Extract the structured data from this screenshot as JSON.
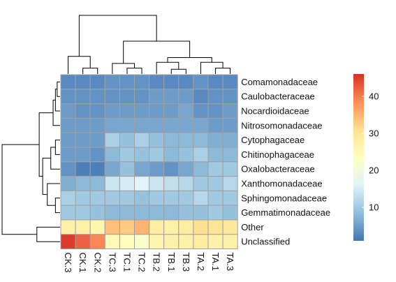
{
  "chart_data": {
    "type": "heatmap",
    "title": "",
    "xlabel": "",
    "ylabel": "",
    "rows": [
      "Comamonadaceae",
      "Caulobacteraceae",
      "Nocardioidaceae",
      "Nitrosomonadaceae",
      "Cytophagaceae",
      "Chitinophagaceae",
      "Oxalobacteraceae",
      "Xanthomonadaceae",
      "Sphingomonadaceae",
      "Gemmatimonadaceae",
      "Other",
      "Unclassified"
    ],
    "columns": [
      "CK.3",
      "CK.1",
      "CK.2",
      "TC.3",
      "TC.1",
      "TC.2",
      "TB.2",
      "TB.1",
      "TB.3",
      "TA.2",
      "TA.1",
      "TA.3"
    ],
    "values": [
      [
        3,
        3,
        3,
        4,
        4,
        4,
        3,
        3,
        3,
        4,
        3,
        3
      ],
      [
        4,
        4,
        4,
        4,
        4,
        4,
        5,
        5,
        5,
        3,
        4,
        4
      ],
      [
        5,
        4,
        4,
        5,
        5,
        5,
        5,
        5,
        6,
        4,
        4,
        5
      ],
      [
        5,
        5,
        5,
        6,
        6,
        6,
        6,
        6,
        6,
        6,
        5,
        5
      ],
      [
        5,
        5,
        5,
        11,
        9,
        11,
        9,
        8,
        8,
        8,
        7,
        7
      ],
      [
        5,
        5,
        4,
        8,
        10,
        9,
        10,
        8,
        9,
        11,
        8,
        8
      ],
      [
        4,
        2,
        2,
        6,
        9,
        6,
        5,
        4,
        6,
        8,
        10,
        10
      ],
      [
        7,
        8,
        8,
        14,
        15,
        16,
        14,
        13,
        12,
        10,
        10,
        12
      ],
      [
        11,
        10,
        10,
        10,
        10,
        9,
        10,
        10,
        10,
        12,
        10,
        10
      ],
      [
        10,
        10,
        9,
        8,
        8,
        8,
        8,
        8,
        9,
        9,
        10,
        9
      ],
      [
        27,
        27,
        26,
        34,
        33,
        35,
        28,
        27,
        28,
        31,
        30,
        29
      ],
      [
        45,
        42,
        39,
        25,
        24,
        22,
        26,
        27,
        27,
        28,
        27,
        27
      ]
    ],
    "legend": {
      "ticks": [
        10,
        20,
        30,
        40
      ],
      "range": [
        1,
        46
      ],
      "colors": [
        "#4575B4",
        "#91BFDB",
        "#E0F3F8",
        "#FFFFBF",
        "#FEE090",
        "#FC8D59",
        "#D73027"
      ]
    },
    "cell_border_color": "#A0A0A0",
    "has_row_dendrogram": true,
    "has_column_dendrogram": true
  }
}
